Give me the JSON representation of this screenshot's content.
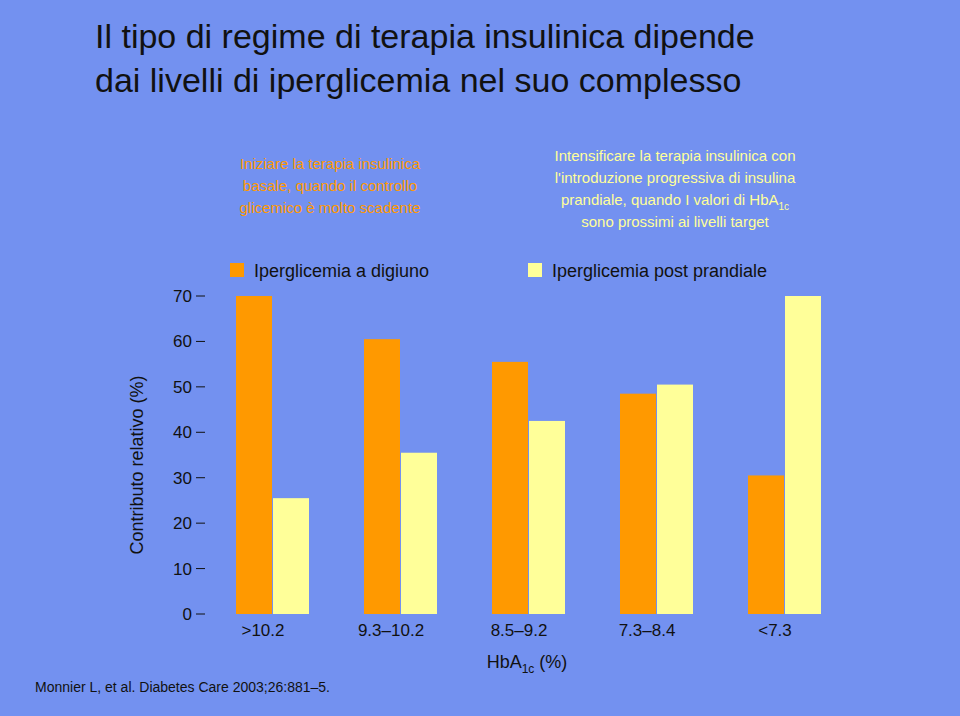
{
  "chart_data": {
    "type": "bar",
    "title": "Il tipo di regime di terapia insulinica dipende\ndai livelli di iperglicemia nel suo complesso",
    "annotations": [
      {
        "text": "Iniziare la terapia insulinica\nbasale, quando il controllo\nglicemico è molto scadente"
      },
      {
        "text": "Intensificare la terapia insulinica con\nl'introduzione progressiva di insulina\nprandiale, quando I valori di HbA1c\nsono prossimi ai livelli target"
      }
    ],
    "x_label": "HbA1c (%)",
    "y_label": "Contributo relativo (%)",
    "source": "Monnier L, et al. Diabetes Care 2003;26:881–5.",
    "categories": [
      ">10.2",
      "9.3–10.2",
      "8.5–9.2",
      "7.3–8.4",
      "<7.3"
    ],
    "series": [
      {
        "name": "Iperglicemia a digiuno",
        "color": "#ff9900",
        "values": [
          70,
          60.5,
          55.5,
          48.5,
          30.5
        ]
      },
      {
        "name": "Iperglicemia post prandiale",
        "color": "#ffff99",
        "values": [
          25.5,
          35.5,
          42.5,
          50.5,
          70
        ]
      }
    ],
    "ylim": [
      0,
      70
    ],
    "yticks": [
      0,
      10,
      20,
      30,
      40,
      50,
      60,
      70
    ],
    "grid": false,
    "legend": "top"
  }
}
